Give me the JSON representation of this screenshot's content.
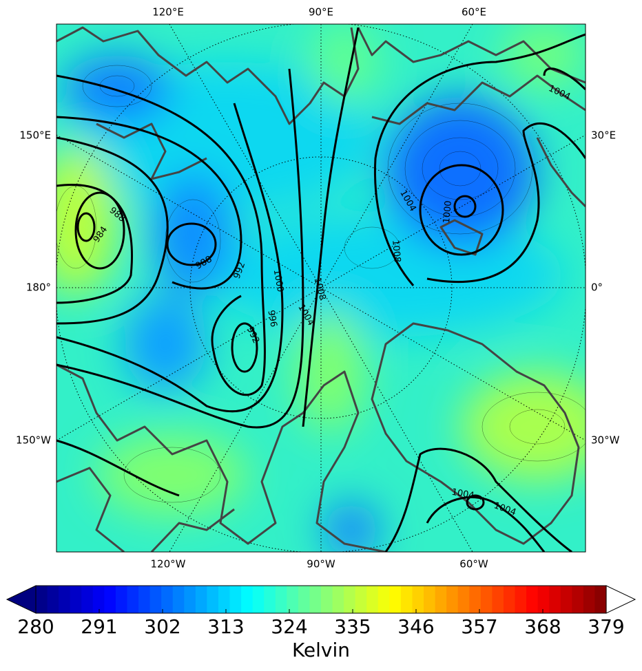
{
  "map": {
    "top_labels": [
      "120°E",
      "90°E",
      "60°E"
    ],
    "bottom_labels": [
      "120°W",
      "90°W",
      "60°W"
    ],
    "left_labels": [
      "150°E",
      "180°",
      "150°W"
    ],
    "right_labels": [
      "30°E",
      "0°",
      "30°W"
    ],
    "contour_labels": [
      988,
      984,
      988,
      992,
      1000,
      1008,
      996,
      992,
      1004,
      1004,
      1000,
      1008,
      1004,
      1004,
      1004
    ]
  },
  "colorbar": {
    "label": "Kelvin",
    "range": [
      280,
      379
    ],
    "ticks": [
      280,
      291,
      302,
      313,
      324,
      335,
      346,
      357,
      368,
      379
    ]
  }
}
